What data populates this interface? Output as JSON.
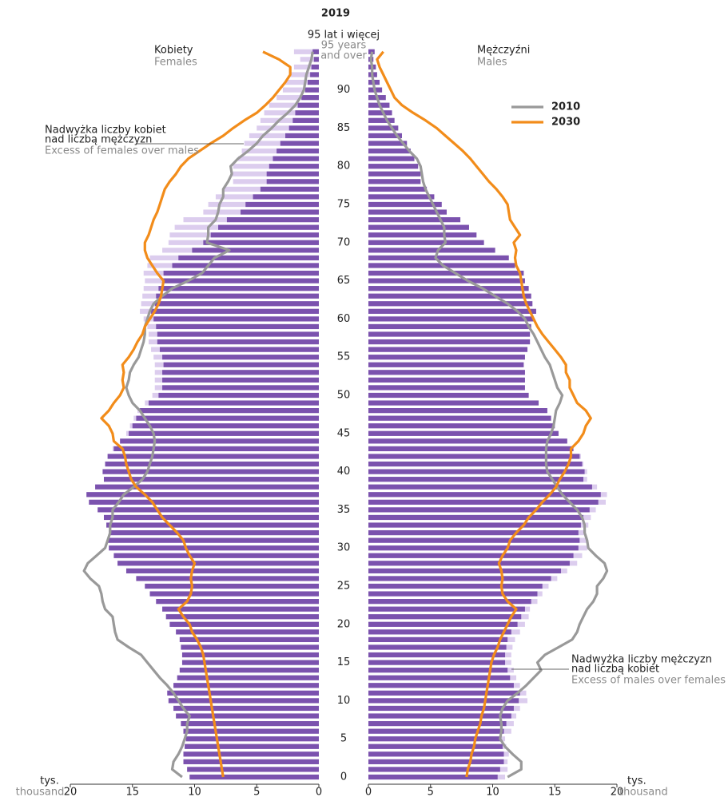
{
  "chart_data": {
    "type": "pyramid",
    "title": "2019",
    "categories": [
      "0",
      null,
      null,
      null,
      null,
      "5",
      null,
      null,
      null,
      null,
      "10",
      null,
      null,
      null,
      null,
      "15",
      null,
      null,
      null,
      null,
      "20",
      null,
      null,
      null,
      null,
      "25",
      null,
      null,
      null,
      null,
      "30",
      null,
      null,
      null,
      null,
      "35",
      null,
      null,
      null,
      null,
      "40",
      null,
      null,
      null,
      null,
      "45",
      null,
      null,
      null,
      null,
      "50",
      null,
      null,
      null,
      null,
      "55",
      null,
      null,
      null,
      null,
      "60",
      null,
      null,
      null,
      null,
      "65",
      null,
      null,
      null,
      null,
      "70",
      null,
      null,
      null,
      null,
      "75",
      null,
      null,
      null,
      null,
      "80",
      null,
      null,
      null,
      null,
      "85",
      null,
      null,
      null,
      null,
      "90",
      null,
      null,
      null,
      null,
      "95 lat i więcej"
    ],
    "top_category_en": [
      "95 years",
      "and over"
    ],
    "series": [
      {
        "name": "Kobiety",
        "name_en": "Females",
        "side": "left",
        "color": "#7b52ae",
        "excess_color": "#dccdee",
        "values": [
          10.4,
          10.6,
          10.9,
          10.9,
          10.8,
          10.7,
          10.9,
          11.1,
          11.5,
          11.7,
          12.1,
          12.2,
          11.7,
          11.4,
          11.2,
          11.0,
          11.0,
          11.1,
          11.2,
          11.5,
          12.0,
          12.3,
          12.6,
          13.1,
          13.6,
          14.0,
          14.7,
          15.5,
          16.2,
          16.5,
          16.9,
          17.0,
          16.9,
          17.1,
          17.3,
          17.8,
          18.5,
          18.7,
          18.0,
          17.3,
          17.4,
          17.2,
          17.0,
          16.6,
          16.0,
          15.5,
          15.2,
          14.9,
          14.6,
          14.0,
          13.4,
          13.2,
          13.2,
          13.2,
          13.2,
          13.3,
          13.5,
          13.7,
          13.7,
          13.8,
          14.1,
          14.4,
          14.3,
          14.2,
          14.1,
          14.0,
          14.1,
          13.8,
          13.6,
          12.6,
          12.1,
          12.0,
          11.6,
          10.9,
          9.3,
          8.9,
          8.3,
          7.6,
          6.9,
          7.1,
          6.9,
          6.5,
          6.2,
          6.0,
          5.6,
          5.0,
          4.7,
          4.4,
          4.0,
          3.4,
          2.9,
          2.7,
          2.4,
          2.0,
          1.5,
          2.0
        ]
      },
      {
        "name": "Mężczyźni",
        "name_en": "Males",
        "side": "right",
        "color": "#7b52ae",
        "excess_color": "#dccdee",
        "values": [
          11.0,
          11.2,
          11.2,
          11.3,
          11.1,
          11.0,
          11.5,
          11.7,
          11.9,
          12.2,
          12.8,
          12.7,
          12.2,
          11.9,
          11.7,
          11.5,
          11.5,
          11.6,
          11.8,
          12.2,
          12.6,
          12.9,
          13.0,
          13.6,
          14.0,
          14.5,
          15.2,
          16.0,
          16.8,
          17.2,
          17.6,
          17.6,
          17.5,
          17.7,
          17.9,
          18.3,
          19.1,
          19.2,
          18.4,
          17.6,
          17.6,
          17.3,
          17.1,
          16.5,
          16.0,
          15.3,
          15.0,
          14.7,
          14.4,
          13.7,
          12.9,
          12.6,
          12.6,
          12.6,
          12.5,
          12.6,
          12.8,
          13.0,
          13.0,
          13.1,
          13.3,
          13.5,
          13.2,
          13.1,
          12.9,
          12.6,
          12.5,
          11.8,
          11.3,
          10.2,
          9.3,
          8.7,
          8.1,
          7.4,
          6.3,
          5.9,
          5.3,
          4.7,
          4.2,
          4.2,
          4.0,
          3.7,
          3.4,
          3.1,
          2.7,
          2.4,
          2.1,
          1.9,
          1.7,
          1.4,
          1.1,
          0.9,
          0.7,
          0.6,
          0.4,
          0.5
        ]
      }
    ],
    "lines": [
      {
        "name": "2010",
        "color": "#999999",
        "females": [
          11.0,
          11.8,
          11.7,
          11.3,
          11.0,
          10.8,
          10.6,
          10.6,
          10.4,
          10.9,
          11.3,
          11.7,
          12.2,
          12.8,
          13.3,
          13.8,
          14.3,
          15.3,
          16.2,
          16.4,
          16.5,
          16.6,
          17.2,
          17.4,
          17.5,
          17.7,
          18.4,
          18.9,
          18.6,
          17.9,
          17.2,
          17.0,
          16.8,
          16.8,
          16.6,
          16.6,
          16.1,
          15.7,
          14.9,
          14.2,
          13.8,
          13.6,
          13.4,
          13.3,
          13.2,
          13.3,
          13.6,
          14.0,
          14.4,
          15.0,
          15.3,
          15.5,
          15.3,
          15.2,
          14.9,
          14.5,
          14.3,
          14.1,
          14.0,
          14.0,
          13.8,
          13.6,
          13.3,
          12.6,
          11.8,
          10.5,
          9.4,
          8.9,
          8.4,
          7.2,
          9.0,
          8.9,
          8.9,
          8.3,
          8.1,
          8.0,
          7.7,
          7.7,
          7.3,
          7.0,
          7.1,
          6.5,
          5.7,
          5.0,
          4.5,
          3.8,
          3.2,
          2.5,
          1.9,
          1.5,
          1.2,
          1.1,
          1.0,
          0.8,
          0.6,
          0.5
        ],
        "males": [
          11.2,
          12.3,
          12.3,
          11.6,
          11.0,
          10.6,
          10.7,
          10.7,
          10.6,
          10.8,
          11.2,
          12.0,
          12.7,
          13.3,
          13.9,
          13.6,
          14.2,
          15.3,
          16.4,
          16.8,
          17.0,
          17.3,
          17.6,
          18.1,
          18.4,
          18.4,
          18.9,
          19.2,
          19.0,
          18.3,
          17.7,
          17.6,
          17.4,
          17.4,
          17.2,
          16.8,
          16.2,
          15.6,
          15.2,
          14.8,
          14.4,
          14.3,
          14.3,
          14.3,
          14.4,
          14.7,
          14.9,
          15.0,
          15.1,
          15.4,
          15.6,
          15.2,
          15.0,
          14.8,
          14.6,
          14.2,
          13.9,
          13.6,
          13.3,
          12.9,
          12.6,
          12.0,
          11.2,
          10.2,
          9.2,
          8.0,
          7.0,
          6.0,
          5.4,
          5.6,
          6.2,
          6.1,
          6.1,
          5.8,
          5.5,
          5.2,
          4.9,
          4.6,
          4.4,
          4.3,
          4.2,
          3.9,
          3.3,
          2.8,
          2.3,
          1.9,
          1.5,
          1.2,
          0.9,
          0.7,
          0.5,
          0.4,
          0.3,
          0.3,
          0.2,
          0.3
        ]
      },
      {
        "name": "2030",
        "color": "#f28c1a",
        "females": [
          7.7,
          7.8,
          7.9,
          8.0,
          8.1,
          8.2,
          8.3,
          8.4,
          8.5,
          8.6,
          8.7,
          8.8,
          8.9,
          9.0,
          9.1,
          9.2,
          9.3,
          9.5,
          9.8,
          10.2,
          10.4,
          10.9,
          11.3,
          10.6,
          10.3,
          10.2,
          10.3,
          10.2,
          10.0,
          10.4,
          10.7,
          10.9,
          11.4,
          12.0,
          12.6,
          13.0,
          13.4,
          14.0,
          14.7,
          15.1,
          15.3,
          15.5,
          15.6,
          15.8,
          16.5,
          16.6,
          16.9,
          17.5,
          16.9,
          16.5,
          16.0,
          15.7,
          15.8,
          15.7,
          15.8,
          15.3,
          14.9,
          14.6,
          14.2,
          14.0,
          13.6,
          13.2,
          12.9,
          12.7,
          12.6,
          12.5,
          13.0,
          13.4,
          13.8,
          14.0,
          14.0,
          13.7,
          13.5,
          13.3,
          13.0,
          12.8,
          12.6,
          12.4,
          12.0,
          11.5,
          11.1,
          10.5,
          9.6,
          8.7,
          7.7,
          6.9,
          6.0,
          5.0,
          4.3,
          3.7,
          3.2,
          2.7,
          2.3,
          2.3,
          3.2,
          4.5
        ],
        "males": [
          7.9,
          8.0,
          8.2,
          8.3,
          8.5,
          8.6,
          8.8,
          9.0,
          9.1,
          9.3,
          9.4,
          9.5,
          9.6,
          9.7,
          9.8,
          9.9,
          10.1,
          10.4,
          10.6,
          10.9,
          11.2,
          11.5,
          11.9,
          11.2,
          10.8,
          10.7,
          10.8,
          10.7,
          10.5,
          10.8,
          11.2,
          11.4,
          11.9,
          12.5,
          12.9,
          13.5,
          14.0,
          14.6,
          15.1,
          15.4,
          15.8,
          16.1,
          16.3,
          16.3,
          16.9,
          17.3,
          17.5,
          17.9,
          17.5,
          16.8,
          16.5,
          16.2,
          16.2,
          15.9,
          15.9,
          15.5,
          15.0,
          14.5,
          14.0,
          13.6,
          13.3,
          13.0,
          12.7,
          12.5,
          12.4,
          12.3,
          12.2,
          11.9,
          11.8,
          11.9,
          11.7,
          12.2,
          11.8,
          11.4,
          11.3,
          11.2,
          10.8,
          10.3,
          9.7,
          9.2,
          8.7,
          8.2,
          7.6,
          6.9,
          6.2,
          5.5,
          4.6,
          3.6,
          2.7,
          2.1,
          1.8,
          1.5,
          1.2,
          0.9,
          0.7,
          1.2
        ]
      }
    ],
    "xlim": [
      0,
      20
    ],
    "xticks": [
      0,
      5,
      10,
      15,
      20
    ],
    "x_unit": [
      "tys.",
      "thousand"
    ],
    "legend": "upper right",
    "annotations": [
      {
        "side": "left",
        "lines": [
          "Nadwyżka liczby kobiet",
          "nad liczbą mężczyzn"
        ],
        "en": "Excess of females over males"
      },
      {
        "side": "right",
        "lines": [
          "Nadwyżka liczby mężczyzn",
          "nad liczbą kobiet"
        ],
        "en": "Excess of males over females"
      }
    ]
  }
}
